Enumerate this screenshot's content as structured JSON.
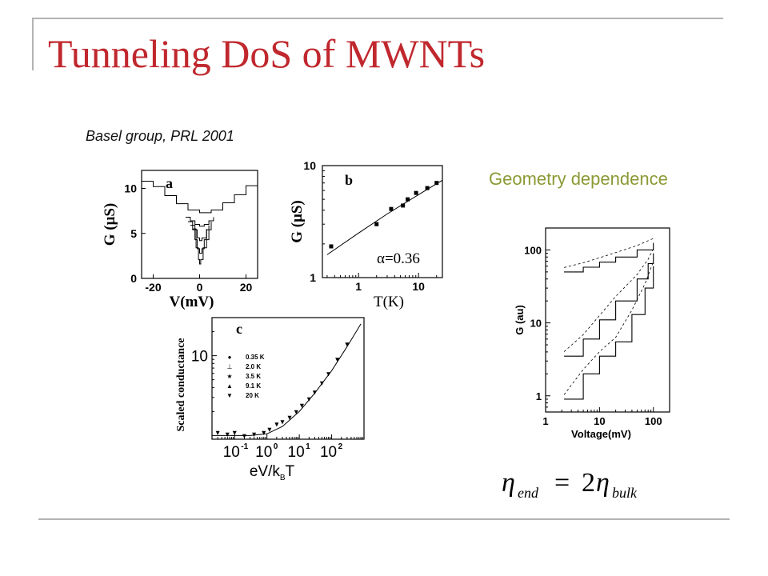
{
  "slide": {
    "title": "Tunneling DoS of MWNTs",
    "credit": "Basel group, PRL 2001",
    "geometry_label": "Geometry dependence",
    "formula": {
      "lhs": "η",
      "lhs_sub": "end",
      "eq": "=",
      "coef": "2",
      "rhs": "η",
      "rhs_sub": "bulk"
    }
  },
  "chart_data": [
    {
      "id": "panel-a",
      "type": "line",
      "panel_label": "a",
      "xlabel": "V(mV)",
      "ylabel": "G (μS)",
      "xlim": [
        -25,
        25
      ],
      "ylim": [
        0,
        12
      ],
      "xticks": [
        -20,
        0,
        20
      ],
      "xtick_labels": [
        "-20",
        "0",
        "20"
      ],
      "yticks": [
        0,
        5,
        10
      ],
      "ytick_labels": [
        "0",
        "5",
        "10"
      ],
      "series": [
        {
          "x": [
            -25,
            -20,
            -15,
            -10,
            -5,
            0,
            5,
            10,
            15,
            20,
            25
          ],
          "y": [
            10.8,
            10.2,
            9.2,
            8.3,
            7.6,
            7.3,
            7.6,
            8.4,
            9.3,
            10.3,
            10.8
          ]
        },
        {
          "x": [
            -6,
            -4,
            -2,
            0,
            2,
            4,
            6
          ],
          "y": [
            6.8,
            6.4,
            6.0,
            5.8,
            6.0,
            6.4,
            6.8
          ]
        },
        {
          "x": [
            -5,
            -3,
            -1,
            0,
            1,
            3,
            5
          ],
          "y": [
            6.3,
            5.4,
            4.5,
            4.2,
            4.5,
            5.4,
            6.3
          ]
        },
        {
          "x": [
            -4,
            -2,
            -1,
            0,
            1,
            2,
            4
          ],
          "y": [
            5.9,
            4.3,
            3.3,
            2.8,
            3.3,
            4.3,
            5.9
          ]
        },
        {
          "x": [
            -3,
            -1.5,
            -0.5,
            0,
            0.5,
            1.5,
            3
          ],
          "y": [
            5.5,
            3.4,
            2.1,
            1.6,
            2.1,
            3.4,
            5.5
          ]
        }
      ]
    },
    {
      "id": "panel-b",
      "type": "scatter",
      "panel_label": "b",
      "annotation": "α=0.36",
      "xlabel": "T(K)",
      "ylabel": "G (μS)",
      "xscale": "log",
      "yscale": "log",
      "xlim": [
        0.25,
        25
      ],
      "ylim": [
        1,
        10
      ],
      "xticks": [
        1,
        10
      ],
      "xtick_labels": [
        "1",
        "10"
      ],
      "yticks": [
        1,
        10
      ],
      "ytick_labels": [
        "1",
        "10"
      ],
      "points": {
        "x": [
          0.35,
          2.0,
          3.5,
          5.5,
          6.6,
          9.1,
          14,
          20
        ],
        "y": [
          1.9,
          3.0,
          4.1,
          4.4,
          5.0,
          5.7,
          6.3,
          7.0
        ]
      },
      "fit_line": {
        "x": [
          0.3,
          1,
          3,
          10,
          25
        ],
        "y": [
          1.6,
          2.5,
          3.7,
          5.5,
          7.4
        ]
      }
    },
    {
      "id": "panel-c",
      "type": "scatter",
      "panel_label": "c",
      "xlabel": "eV/k",
      "xlabel_sub": "B",
      "xlabel_tail": "T",
      "ylabel": "Scaled conductance",
      "xscale": "log",
      "yscale": "log",
      "xlim": [
        0.02,
        1000
      ],
      "ylim": [
        0.9,
        30
      ],
      "xticks": [
        0.1,
        1,
        10,
        100
      ],
      "xtick_bases": [
        "10",
        "10",
        "10",
        "10"
      ],
      "xtick_exps": [
        "-1",
        "0",
        "1",
        "2"
      ],
      "yticks": [
        10
      ],
      "ytick_labels": [
        "10"
      ],
      "legend": [
        "0.35 K",
        "2.0  K",
        "3.5  K",
        "9.1  K",
        "20   K"
      ],
      "legend_position": "top-left",
      "curve": {
        "x": [
          0.02,
          0.3,
          1,
          3,
          10,
          30,
          100,
          300,
          800
        ],
        "y": [
          1.0,
          1.0,
          1.05,
          1.3,
          2.0,
          3.4,
          6.5,
          13,
          25
        ]
      },
      "points": {
        "x": [
          0.03,
          0.06,
          0.1,
          0.2,
          0.4,
          0.8,
          1.2,
          2,
          3,
          5,
          8,
          12,
          20,
          30,
          50,
          80,
          150,
          300
        ],
        "y": [
          1.1,
          1.05,
          1.1,
          1.0,
          1.05,
          1.1,
          1.2,
          1.4,
          1.5,
          1.7,
          2.0,
          2.4,
          2.9,
          3.5,
          4.6,
          6.0,
          9,
          14
        ]
      }
    },
    {
      "id": "panel-d",
      "type": "line",
      "xlabel": "Voltage(mV)",
      "ylabel": "G (au)",
      "xscale": "log",
      "yscale": "log",
      "xlim": [
        1,
        200
      ],
      "ylim": [
        0.6,
        200
      ],
      "xticks": [
        1,
        10,
        100
      ],
      "xtick_labels": [
        "1",
        "10",
        "100"
      ],
      "yticks": [
        1,
        10,
        100
      ],
      "ytick_labels": [
        "1",
        "10",
        "100"
      ],
      "series": [
        {
          "x": [
            2.2,
            5,
            10,
            20,
            50,
            100
          ],
          "y": [
            50,
            58,
            68,
            80,
            100,
            125
          ]
        },
        {
          "x": [
            2.2,
            5,
            10,
            20,
            50,
            80,
            100
          ],
          "y": [
            3.5,
            6.0,
            11,
            20,
            40,
            65,
            90
          ]
        },
        {
          "x": [
            2.2,
            5,
            10,
            20,
            40,
            70,
            100
          ],
          "y": [
            0.9,
            2.0,
            3.5,
            5.5,
            13,
            30,
            60
          ]
        }
      ]
    }
  ]
}
